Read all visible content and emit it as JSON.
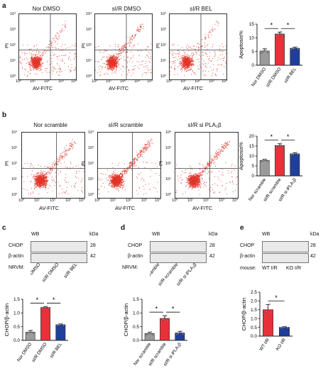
{
  "panels": {
    "a": {
      "letter": "a",
      "flow_titles": [
        "Nor DMSO",
        "sI/R DMSO",
        "sI/R BEL"
      ],
      "x_label": "AV-FITC",
      "y_label": "PI",
      "x_ticks": [
        "10⁰",
        "10¹",
        "10²",
        "10³",
        "10⁴"
      ],
      "y_ticks": [
        "10⁴",
        "10³",
        "10²",
        "10¹",
        "10⁰"
      ]
    },
    "b": {
      "letter": "b",
      "flow_titles": [
        "Nor scramble",
        "sI/R scramble",
        "sI/R si PLA₂β"
      ],
      "x_label": "AV-FITC",
      "y_label": "PI",
      "x_ticks": [
        "10⁰",
        "10¹",
        "10²",
        "10³",
        "10⁴"
      ],
      "y_ticks": [
        "10⁴",
        "10³",
        "10²",
        "10¹",
        "10⁰"
      ]
    },
    "c": {
      "letter": "c",
      "wb": "WB",
      "kda": "kDa",
      "bands": [
        "CHOP",
        "β-actin"
      ],
      "mw": [
        "28",
        "42"
      ],
      "source": "NRVM:"
    },
    "d": {
      "letter": "d",
      "wb": "WB",
      "kda": "kDa",
      "bands": [
        "CHOP",
        "β-actin"
      ],
      "mw": [
        "28",
        "42"
      ],
      "source": "NRVM:"
    },
    "e": {
      "letter": "e",
      "wb": "WB",
      "kda": "kDa",
      "bands": [
        "CHOP",
        "β-actin"
      ],
      "mw": [
        "28",
        "42"
      ],
      "source": "mouse:",
      "lanes": [
        "WT I/R",
        "KO I/R"
      ]
    }
  },
  "colors": {
    "control": "#9a9a9a",
    "ir": "#e8313a",
    "treat": "#1f3f9a",
    "dots": "#e0352a"
  },
  "chart_data": [
    {
      "type": "bar",
      "id": "a",
      "categories": [
        "Nor DMSO",
        "sI/R DMSO",
        "sI/R BEL"
      ],
      "values": [
        5.2,
        11.4,
        6.2
      ],
      "errors": [
        0.8,
        0.7,
        0.4
      ],
      "ylabel": "Apoptosis%",
      "ylim": [
        0,
        15
      ],
      "yticks": [
        0,
        5,
        10,
        15
      ],
      "significance": [
        "*",
        "*"
      ]
    },
    {
      "type": "bar",
      "id": "b",
      "categories": [
        "Nor scramble",
        "sI/R scramble",
        "sI/R si iPLA₂β"
      ],
      "values": [
        7.8,
        15.3,
        11.1
      ],
      "errors": [
        0.5,
        0.9,
        0.6
      ],
      "ylabel": "Apoptosis%",
      "ylim": [
        0,
        20
      ],
      "yticks": [
        0,
        5,
        10,
        15,
        20
      ],
      "significance": [
        "*",
        "*"
      ]
    },
    {
      "type": "bar",
      "id": "c",
      "categories": [
        "Nor DMSO",
        "sI/R DMSO",
        "sI/R BEL"
      ],
      "values": [
        0.3,
        1.2,
        0.57
      ],
      "errors": [
        0.06,
        0.03,
        0.03
      ],
      "ylabel": "CHOP/β-actin",
      "ylim": [
        0,
        1.5
      ],
      "yticks": [
        0.0,
        0.5,
        1.0,
        1.5
      ],
      "significance": [
        "*",
        "*"
      ]
    },
    {
      "type": "bar",
      "id": "d",
      "categories": [
        "Nor scramble",
        "sI/R scramble",
        "sI/R si iPLA₂β"
      ],
      "values": [
        0.25,
        0.8,
        0.27
      ],
      "errors": [
        0.05,
        0.1,
        0.06
      ],
      "ylabel": "CHOP/β-actin",
      "ylim": [
        0,
        1.5
      ],
      "yticks": [
        0.0,
        0.5,
        1.0,
        1.5
      ],
      "significance": [
        "*",
        "*"
      ]
    },
    {
      "type": "bar",
      "id": "e",
      "categories": [
        "WT I/R",
        "KO I/R"
      ],
      "values": [
        1.5,
        0.5
      ],
      "errors": [
        0.3,
        0.04
      ],
      "ylabel": "CHOP/β-actin",
      "ylim": [
        0,
        2.5
      ],
      "yticks": [
        0.0,
        0.5,
        1.0,
        1.5,
        2.0,
        2.5
      ],
      "significance": [
        "*"
      ]
    }
  ]
}
